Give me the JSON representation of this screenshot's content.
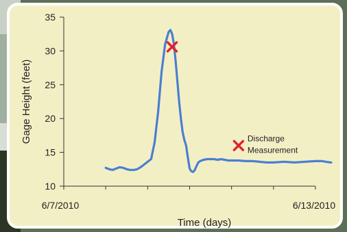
{
  "chart_data": {
    "type": "line",
    "title": "",
    "xlabel": "Time (days)",
    "ylabel": "Gage Height (feet)",
    "ylim": [
      10,
      35
    ],
    "yticks": [
      10,
      15,
      20,
      25,
      30,
      35
    ],
    "xlim": [
      "2010-06-07",
      "2010-06-13"
    ],
    "xtick_labels": [
      "6/7/2010",
      "6/13/2010"
    ],
    "grid": false,
    "colors": {
      "line": "#4a7fd1",
      "marker": "#e0202a",
      "background": "#f3efc5"
    },
    "series": [
      {
        "x": [
          "2010-06-08 00:00",
          "2010-06-08 02:00",
          "2010-06-08 04:00",
          "2010-06-08 06:00",
          "2010-06-08 08:00",
          "2010-06-08 10:00",
          "2010-06-08 12:00",
          "2010-06-08 14:00",
          "2010-06-08 16:00",
          "2010-06-08 18:00",
          "2010-06-08 20:00",
          "2010-06-08 22:00",
          "2010-06-09 00:00",
          "2010-06-09 02:00",
          "2010-06-09 04:00",
          "2010-06-09 06:00",
          "2010-06-09 08:00",
          "2010-06-09 10:00",
          "2010-06-09 12:00",
          "2010-06-09 13:00",
          "2010-06-09 14:00",
          "2010-06-09 15:00",
          "2010-06-09 16:00",
          "2010-06-09 17:00",
          "2010-06-09 18:00",
          "2010-06-09 19:00",
          "2010-06-09 20:00",
          "2010-06-09 21:00",
          "2010-06-09 22:00",
          "2010-06-09 23:00",
          "2010-06-10 00:00",
          "2010-06-10 01:00",
          "2010-06-10 02:00",
          "2010-06-10 03:00",
          "2010-06-10 04:00",
          "2010-06-10 05:00",
          "2010-06-10 06:00",
          "2010-06-10 08:00",
          "2010-06-10 10:00",
          "2010-06-10 12:00",
          "2010-06-10 14:00",
          "2010-06-10 16:00",
          "2010-06-10 18:00",
          "2010-06-10 20:00",
          "2010-06-10 22:00",
          "2010-06-11 00:00",
          "2010-06-11 04:00",
          "2010-06-11 08:00",
          "2010-06-11 12:00",
          "2010-06-11 16:00",
          "2010-06-11 20:00",
          "2010-06-12 00:00",
          "2010-06-12 06:00",
          "2010-06-12 12:00",
          "2010-06-12 18:00",
          "2010-06-13 00:00",
          "2010-06-13 04:00",
          "2010-06-13 06:00",
          "2010-06-13 09:00"
        ],
        "y": [
          12.7,
          12.5,
          12.4,
          12.6,
          12.8,
          12.7,
          12.5,
          12.4,
          12.4,
          12.5,
          12.8,
          13.2,
          13.6,
          14.0,
          16.5,
          21.0,
          27.0,
          31.0,
          32.8,
          33.1,
          32.5,
          31.0,
          28.5,
          25.5,
          22.5,
          20.0,
          18.0,
          16.8,
          16.0,
          14.2,
          12.6,
          12.2,
          12.1,
          12.4,
          13.0,
          13.5,
          13.7,
          13.9,
          14.0,
          14.0,
          14.0,
          13.9,
          14.0,
          13.9,
          13.8,
          13.8,
          13.8,
          13.7,
          13.7,
          13.6,
          13.5,
          13.5,
          13.6,
          13.5,
          13.6,
          13.7,
          13.7,
          13.6,
          13.5
        ]
      }
    ],
    "markers": [
      {
        "x": "2010-06-09 14:00",
        "y": 30.6
      },
      {
        "x": "2010-06-11 04:00",
        "y": 16.0,
        "label_line1": "Discharge",
        "label_line2": "Measurement"
      }
    ]
  }
}
